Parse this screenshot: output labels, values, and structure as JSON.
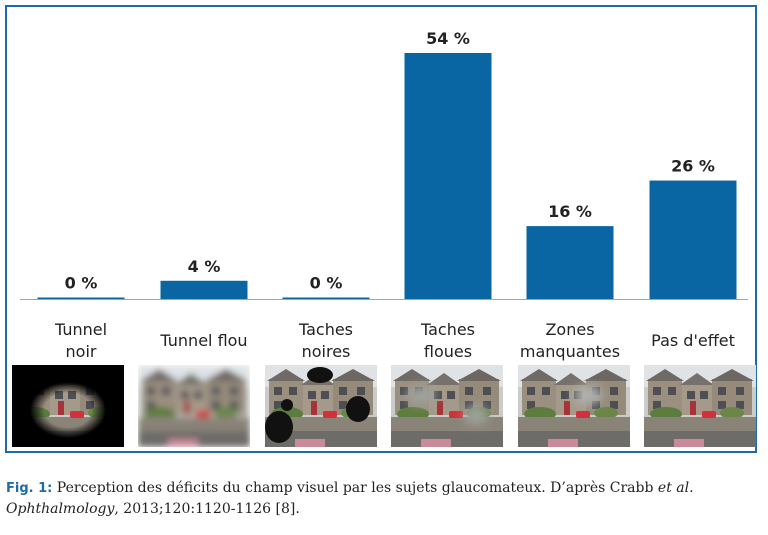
{
  "chart_data": {
    "type": "bar",
    "categories": [
      [
        "Tunnel",
        "noir"
      ],
      [
        "Tunnel flou"
      ],
      [
        "Taches",
        "noires"
      ],
      [
        "Taches",
        "floues"
      ],
      [
        "Zones",
        "manquantes"
      ],
      [
        "Pas d'effet"
      ]
    ],
    "values": [
      0,
      4,
      0,
      54,
      16,
      26
    ],
    "data_labels": [
      "0 %",
      "4 %",
      "0 %",
      "54 %",
      "16 %",
      "26 %"
    ],
    "ylim": [
      0,
      54
    ],
    "grid": false,
    "legend": "none",
    "colors": {
      "bar": "#0a65a3",
      "frame": "#1f6aa8",
      "baseline": "#9aa6b2"
    }
  },
  "thumbnails": [
    {
      "effect": "tunnel-noir"
    },
    {
      "effect": "tunnel-flou"
    },
    {
      "effect": "taches-noires"
    },
    {
      "effect": "taches-floues"
    },
    {
      "effect": "zones-manquantes"
    },
    {
      "effect": "pas-d-effet"
    }
  ],
  "caption": {
    "label": "Fig. 1:",
    "text_a": " Perception des déficits du champ visuel par les sujets glaucomateux. D’après Crabb ",
    "et_al": "et al.",
    "journal": "Ophthalmology",
    "text_b": ", 2013;120:1120-1126 [8]."
  }
}
